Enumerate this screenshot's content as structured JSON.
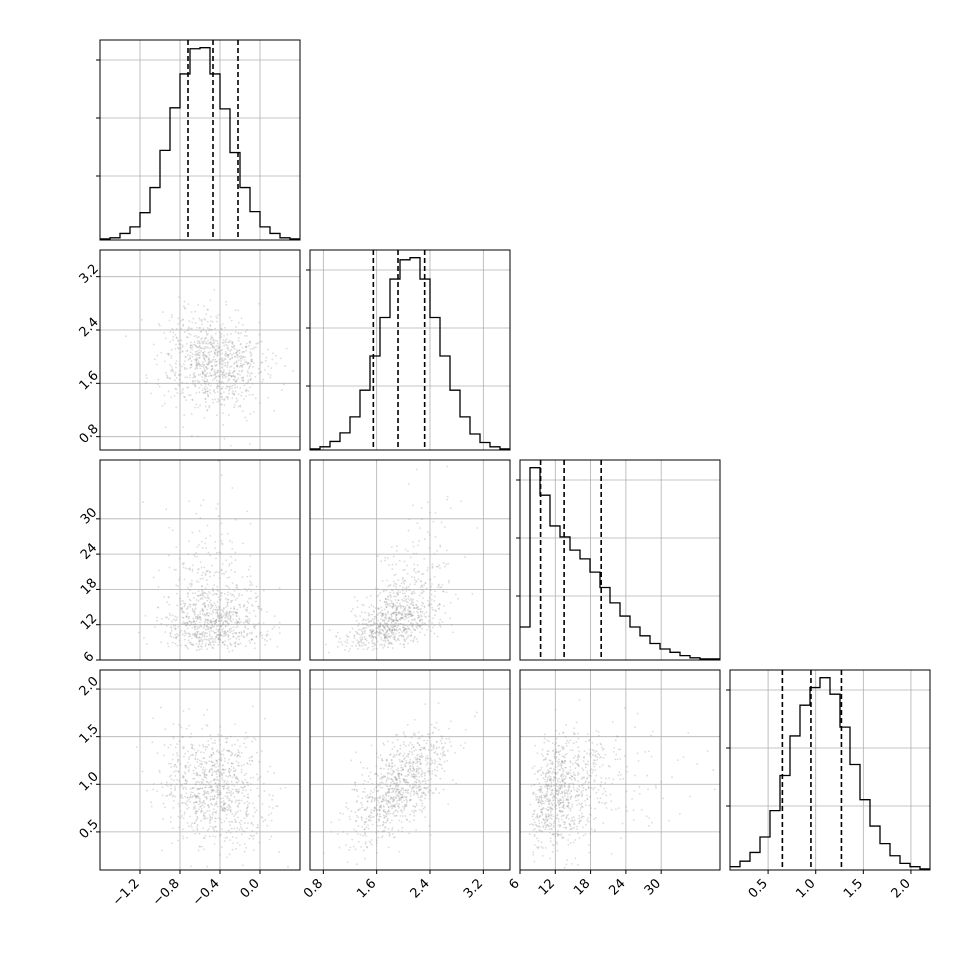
{
  "chart_data": {
    "type": "corner",
    "grid": true,
    "parameters": [
      {
        "index": 0,
        "range": [
          -1.6,
          0.4
        ],
        "ticks": [
          -1.2,
          -0.8,
          -0.4,
          0.0
        ],
        "tick_labels": [
          "−1.2",
          "−0.8",
          "−0.4",
          "0.0"
        ],
        "quantiles": [
          -0.72,
          -0.47,
          -0.22
        ],
        "median": -0.47,
        "sigma": 0.25
      },
      {
        "index": 1,
        "range": [
          0.6,
          3.6
        ],
        "ticks": [
          0.8,
          1.6,
          2.4,
          3.2
        ],
        "tick_labels": [
          "0.8",
          "1.6",
          "2.4",
          "3.2"
        ],
        "quantiles": [
          1.55,
          1.92,
          2.32
        ],
        "median": 1.92,
        "sigma": 0.37
      },
      {
        "index": 2,
        "range": [
          6,
          40
        ],
        "ticks": [
          6,
          12,
          18,
          24,
          30
        ],
        "tick_labels": [
          "6",
          "12",
          "18",
          "24",
          "30"
        ],
        "quantiles": [
          9.5,
          13.5,
          19.8
        ],
        "median": 13.5,
        "skewed": true
      },
      {
        "index": 3,
        "range": [
          0.1,
          2.2
        ],
        "ticks": [
          0.5,
          1.0,
          1.5,
          2.0
        ],
        "tick_labels": [
          "0.5",
          "1.0",
          "1.5",
          "2.0"
        ],
        "quantiles": [
          0.65,
          0.95,
          1.27
        ],
        "median": 0.95,
        "sigma": 0.3
      }
    ],
    "histograms": [
      {
        "param": 0,
        "bins": 20,
        "counts": [
          1,
          2,
          6,
          12,
          25,
          48,
          82,
          121,
          152,
          175,
          176,
          152,
          120,
          80,
          48,
          26,
          12,
          6,
          2,
          1
        ]
      },
      {
        "param": 1,
        "bins": 20,
        "counts": [
          1,
          3,
          8,
          16,
          31,
          56,
          88,
          124,
          160,
          178,
          180,
          160,
          124,
          88,
          56,
          31,
          15,
          7,
          3,
          1
        ]
      },
      {
        "param": 2,
        "bins": 20,
        "counts": [
          30,
          175,
          150,
          122,
          112,
          100,
          92,
          80,
          66,
          52,
          40,
          30,
          22,
          15,
          10,
          7,
          4,
          2,
          1,
          1
        ]
      },
      {
        "param": 3,
        "bins": 20,
        "counts": [
          3,
          8,
          16,
          30,
          54,
          86,
          122,
          150,
          166,
          175,
          160,
          130,
          96,
          64,
          40,
          24,
          13,
          6,
          3,
          1
        ]
      }
    ],
    "correlations": {
      "1-0": -0.1,
      "2-0": -0.05,
      "2-1": 0.55,
      "3-0": -0.1,
      "3-1": 0.6,
      "3-2": 0.25
    }
  }
}
